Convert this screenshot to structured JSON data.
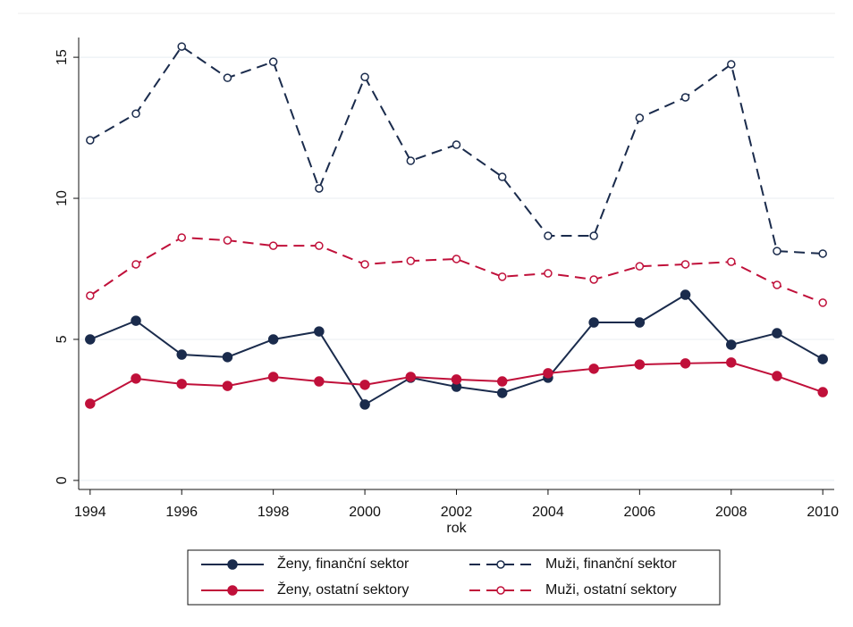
{
  "chart_data": {
    "type": "line",
    "x_label": "rok",
    "x": [
      1994,
      1995,
      1996,
      1997,
      1998,
      1999,
      2000,
      2001,
      2002,
      2003,
      2004,
      2005,
      2006,
      2007,
      2008,
      2009,
      2010
    ],
    "series": [
      {
        "name": "Ženy, finanční sektor",
        "color": "#1a2b4c",
        "dashed": false,
        "hollow": false,
        "values": [
          5.0,
          5.66,
          4.46,
          4.37,
          5.0,
          5.28,
          2.69,
          3.64,
          3.32,
          3.1,
          3.64,
          5.6,
          5.6,
          6.58,
          4.81,
          5.22,
          4.3
        ]
      },
      {
        "name": "Muži, finanční sektor",
        "color": "#1a2b4c",
        "dashed": true,
        "hollow": true,
        "values": [
          12.06,
          13.0,
          15.38,
          14.27,
          14.84,
          10.35,
          14.3,
          11.33,
          11.9,
          10.76,
          8.67,
          8.67,
          12.85,
          13.58,
          14.75,
          8.13,
          8.04
        ]
      },
      {
        "name": "Ženy, ostatní sektory",
        "color": "#c0103a",
        "dashed": false,
        "hollow": false,
        "values": [
          2.72,
          3.61,
          3.42,
          3.35,
          3.67,
          3.51,
          3.39,
          3.67,
          3.58,
          3.51,
          3.8,
          3.96,
          4.11,
          4.15,
          4.18,
          3.7,
          3.13
        ]
      },
      {
        "name": "Muži, ostatní sektory",
        "color": "#c0103a",
        "dashed": true,
        "hollow": true,
        "values": [
          6.55,
          7.66,
          8.61,
          8.51,
          8.32,
          8.32,
          7.66,
          7.78,
          7.85,
          7.22,
          7.34,
          7.12,
          7.59,
          7.66,
          7.75,
          6.93,
          6.3
        ]
      }
    ],
    "xlim": [
      1993.75,
      2010.25
    ],
    "xticks": [
      1994,
      1996,
      1998,
      2000,
      2002,
      2004,
      2006,
      2008,
      2010
    ],
    "ylim": [
      -0.32,
      15.7
    ],
    "yticks": [
      0,
      5,
      10,
      15
    ],
    "grid": true,
    "legend": "bottom"
  }
}
